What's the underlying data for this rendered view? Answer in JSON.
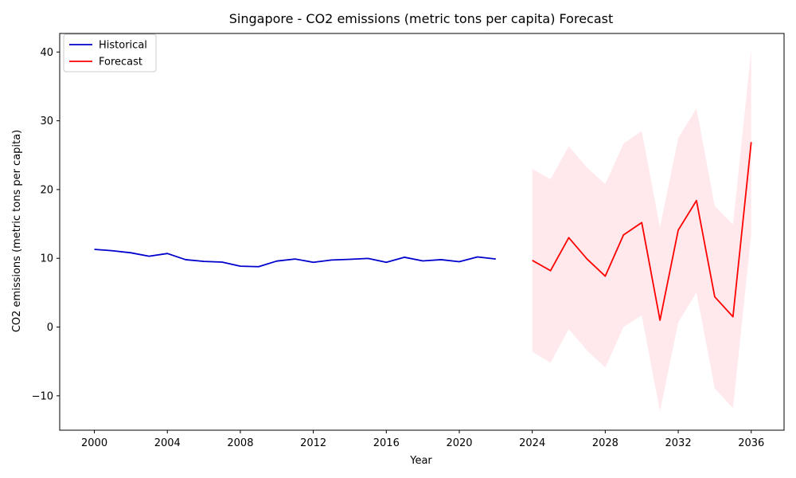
{
  "chart_data": {
    "type": "line",
    "title": "Singapore - CO2 emissions (metric tons per capita) Forecast",
    "xlabel": "Year",
    "ylabel": "CO2 emissions (metric tons per capita)",
    "xlim": [
      1998.1,
      2037.8
    ],
    "ylim": [
      -15,
      42.7
    ],
    "x_ticks": [
      2000,
      2004,
      2008,
      2012,
      2016,
      2020,
      2024,
      2028,
      2032,
      2036
    ],
    "y_ticks": [
      -10,
      0,
      10,
      20,
      30,
      40
    ],
    "x_tick_labels": [
      "2000",
      "2004",
      "2008",
      "2012",
      "2016",
      "2020",
      "2024",
      "2028",
      "2032",
      "2036"
    ],
    "y_tick_labels": [
      "−10",
      "0",
      "10",
      "20",
      "30",
      "40"
    ],
    "grid": false,
    "legend_position": "upper-left",
    "series": [
      {
        "name": "Historical",
        "color": "#0000cd",
        "x": [
          2000,
          2001,
          2002,
          2003,
          2004,
          2005,
          2006,
          2007,
          2008,
          2009,
          2010,
          2011,
          2012,
          2013,
          2014,
          2015,
          2016,
          2017,
          2018,
          2019,
          2020,
          2021,
          2022
        ],
        "values": [
          11.3,
          11.1,
          10.8,
          10.3,
          10.7,
          9.8,
          9.55,
          9.45,
          8.85,
          8.78,
          9.6,
          9.9,
          9.42,
          9.75,
          9.85,
          9.98,
          9.42,
          10.15,
          9.62,
          9.8,
          9.5,
          10.2,
          9.9
        ]
      },
      {
        "name": "Forecast",
        "color": "#ff0000",
        "x": [
          2024,
          2025,
          2026,
          2027,
          2028,
          2029,
          2030,
          2031,
          2032,
          2033,
          2034,
          2035,
          2036
        ],
        "values": [
          9.7,
          8.2,
          13.0,
          9.9,
          7.4,
          13.4,
          15.2,
          1.0,
          14.1,
          18.4,
          4.4,
          1.5,
          26.9
        ],
        "lower": [
          -3.6,
          -5.2,
          -0.3,
          -3.4,
          -5.9,
          0.0,
          1.7,
          -12.3,
          0.7,
          5.0,
          -8.9,
          -11.8,
          13.5
        ],
        "upper": [
          23.0,
          21.5,
          26.3,
          23.2,
          20.8,
          26.7,
          28.5,
          14.5,
          27.5,
          31.8,
          17.6,
          14.9,
          40.3
        ],
        "band_color": "#ffc0cb"
      }
    ]
  }
}
